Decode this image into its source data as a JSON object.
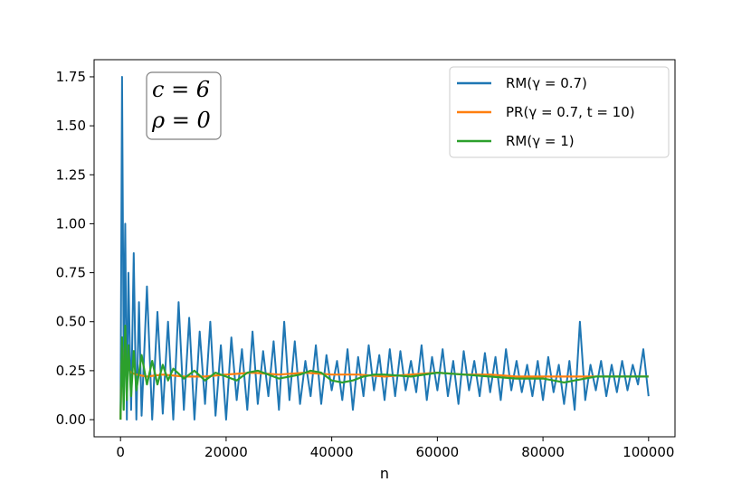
{
  "chart_data": {
    "type": "line",
    "xlabel": "n",
    "ylabel": "",
    "title": "",
    "xlim": [
      -5000,
      105000
    ],
    "ylim": [
      -0.0875,
      1.8375
    ],
    "xticks": [
      0,
      20000,
      40000,
      60000,
      80000,
      100000
    ],
    "xtick_labels": [
      "0",
      "20000",
      "40000",
      "60000",
      "80000",
      "100000"
    ],
    "yticks": [
      0.0,
      0.25,
      0.5,
      0.75,
      1.0,
      1.25,
      1.5,
      1.75
    ],
    "ytick_labels": [
      "0.00",
      "0.25",
      "0.50",
      "0.75",
      "1.00",
      "1.25",
      "1.50",
      "1.75"
    ],
    "grid": false,
    "legend_position": "top-right",
    "annotation": {
      "line1": "c = 6",
      "line2": "ρ = 0"
    },
    "series": [
      {
        "name": "RM(γ = 0.7)",
        "color": "#1f77b4",
        "x": [
          0,
          300,
          600,
          900,
          1200,
          1500,
          2000,
          2500,
          3000,
          3500,
          4000,
          5000,
          6000,
          7000,
          8000,
          9000,
          10000,
          11000,
          12000,
          13000,
          14000,
          15000,
          16000,
          17000,
          18000,
          19000,
          20000,
          21000,
          22000,
          23000,
          24000,
          25000,
          26000,
          27000,
          28000,
          29000,
          30000,
          31000,
          32000,
          33000,
          34000,
          35000,
          36000,
          37000,
          38000,
          39000,
          40000,
          41000,
          42000,
          43000,
          44000,
          45000,
          46000,
          47000,
          48000,
          49000,
          50000,
          51000,
          52000,
          53000,
          54000,
          55000,
          56000,
          57000,
          58000,
          59000,
          60000,
          61000,
          62000,
          63000,
          64000,
          65000,
          66000,
          67000,
          68000,
          69000,
          70000,
          71000,
          72000,
          73000,
          74000,
          75000,
          76000,
          77000,
          78000,
          79000,
          80000,
          81000,
          82000,
          83000,
          84000,
          85000,
          86000,
          87000,
          88000,
          89000,
          90000,
          91000,
          92000,
          93000,
          94000,
          95000,
          96000,
          97000,
          98000,
          99000,
          100000
        ],
        "y": [
          0.0,
          1.75,
          0.3,
          1.0,
          0.0,
          0.75,
          0.05,
          0.85,
          0.0,
          0.6,
          0.02,
          0.68,
          0.0,
          0.55,
          0.03,
          0.5,
          0.0,
          0.6,
          0.05,
          0.52,
          0.0,
          0.45,
          0.08,
          0.5,
          0.02,
          0.38,
          0.0,
          0.42,
          0.1,
          0.36,
          0.05,
          0.45,
          0.08,
          0.35,
          0.12,
          0.4,
          0.05,
          0.5,
          0.1,
          0.4,
          0.08,
          0.3,
          0.12,
          0.38,
          0.08,
          0.33,
          0.15,
          0.3,
          0.1,
          0.36,
          0.05,
          0.32,
          0.12,
          0.38,
          0.15,
          0.33,
          0.1,
          0.36,
          0.12,
          0.35,
          0.15,
          0.3,
          0.14,
          0.38,
          0.1,
          0.32,
          0.15,
          0.36,
          0.12,
          0.3,
          0.08,
          0.35,
          0.15,
          0.3,
          0.12,
          0.34,
          0.14,
          0.32,
          0.1,
          0.36,
          0.15,
          0.3,
          0.14,
          0.28,
          0.12,
          0.3,
          0.1,
          0.32,
          0.14,
          0.28,
          0.08,
          0.3,
          0.05,
          0.5,
          0.1,
          0.28,
          0.15,
          0.3,
          0.12,
          0.28,
          0.14,
          0.3,
          0.15,
          0.28,
          0.18,
          0.36,
          0.12
        ]
      },
      {
        "name": "PR(γ = 0.7, t = 10)",
        "color": "#ff7f0e",
        "x": [
          0,
          300,
          600,
          1000,
          2000,
          3000,
          5000,
          8000,
          12000,
          16000,
          20000,
          25000,
          30000,
          35000,
          40000,
          45000,
          50000,
          55000,
          60000,
          65000,
          70000,
          75000,
          80000,
          85000,
          90000,
          95000,
          100000
        ],
        "y": [
          0.0,
          0.38,
          0.22,
          0.28,
          0.24,
          0.23,
          0.22,
          0.23,
          0.22,
          0.22,
          0.23,
          0.24,
          0.23,
          0.24,
          0.23,
          0.23,
          0.22,
          0.23,
          0.24,
          0.23,
          0.23,
          0.22,
          0.22,
          0.22,
          0.22,
          0.22,
          0.22
        ]
      },
      {
        "name": "RM(γ = 1)",
        "color": "#2ca02c",
        "x": [
          0,
          300,
          600,
          900,
          1200,
          1500,
          2000,
          2500,
          3000,
          4000,
          5000,
          6000,
          7000,
          8000,
          9000,
          10000,
          12000,
          14000,
          16000,
          18000,
          20000,
          22000,
          24000,
          26000,
          28000,
          30000,
          32000,
          34000,
          36000,
          38000,
          40000,
          42000,
          44000,
          46000,
          48000,
          50000,
          55000,
          60000,
          65000,
          70000,
          75000,
          80000,
          82000,
          84000,
          86000,
          88000,
          90000,
          95000,
          100000
        ],
        "y": [
          0.0,
          0.42,
          0.05,
          0.48,
          0.1,
          0.38,
          0.12,
          0.35,
          0.15,
          0.33,
          0.18,
          0.3,
          0.18,
          0.28,
          0.2,
          0.26,
          0.21,
          0.25,
          0.2,
          0.24,
          0.22,
          0.2,
          0.24,
          0.25,
          0.23,
          0.21,
          0.22,
          0.23,
          0.25,
          0.24,
          0.2,
          0.19,
          0.2,
          0.22,
          0.23,
          0.23,
          0.22,
          0.24,
          0.23,
          0.22,
          0.21,
          0.21,
          0.2,
          0.19,
          0.2,
          0.21,
          0.22,
          0.22,
          0.22
        ]
      }
    ]
  }
}
